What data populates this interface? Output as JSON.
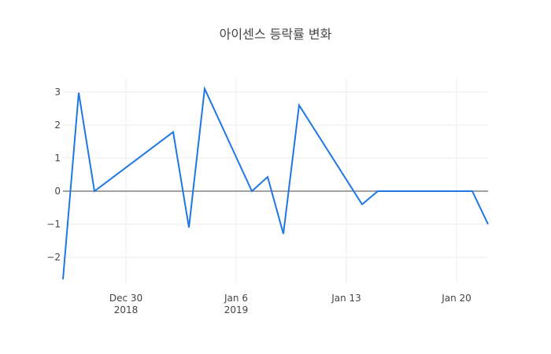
{
  "chart_data": {
    "type": "line",
    "title": "아이센스 등락률 변화",
    "xlabel": "",
    "ylabel": "",
    "x": [
      "2018-12-26",
      "2018-12-27",
      "2018-12-28",
      "2019-01-02",
      "2019-01-03",
      "2019-01-04",
      "2019-01-07",
      "2019-01-08",
      "2019-01-09",
      "2019-01-10",
      "2019-01-14",
      "2019-01-15",
      "2019-01-16",
      "2019-01-17",
      "2019-01-18",
      "2019-01-21",
      "2019-01-22"
    ],
    "series": [
      {
        "name": "등락률",
        "color": "#1f77e4",
        "values": [
          -2.67,
          2.98,
          0.0,
          1.79,
          -1.1,
          3.1,
          0.0,
          0.43,
          -1.29,
          2.6,
          -0.4,
          0.0,
          0.0,
          0.0,
          0.0,
          0.0,
          -1.0
        ]
      }
    ],
    "ylim": [
      -2.7,
      3.25
    ],
    "yticks": [
      -2,
      -1,
      0,
      1,
      2,
      3
    ],
    "ytick_labels": [
      "−2",
      "−1",
      "0",
      "1",
      "2",
      "3"
    ],
    "xticks": [
      {
        "date": "2018-12-30",
        "line1": "Dec 30",
        "line2": "2018"
      },
      {
        "date": "2019-01-06",
        "line1": "Jan 6",
        "line2": "2019"
      },
      {
        "date": "2019-01-13",
        "line1": "Jan 13",
        "line2": ""
      },
      {
        "date": "2019-01-20",
        "line1": "Jan 20",
        "line2": ""
      }
    ],
    "grid": true,
    "zero_line": true,
    "legend": "none"
  }
}
